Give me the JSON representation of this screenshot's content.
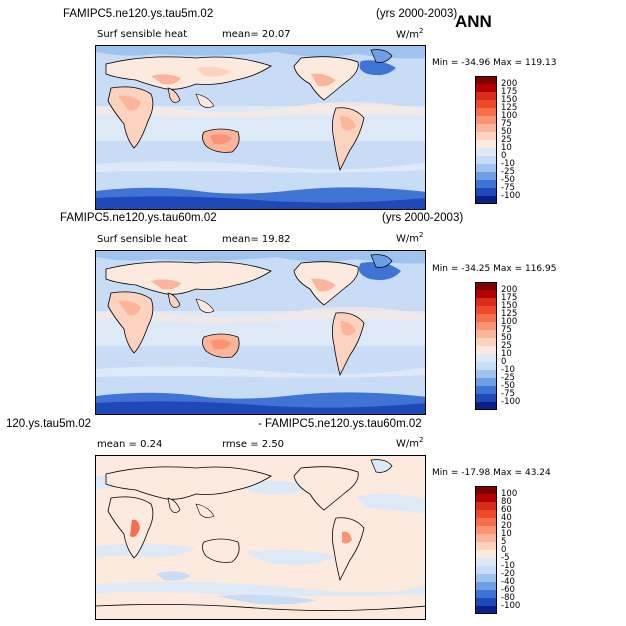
{
  "ann_label": "ANN",
  "panels": [
    {
      "case": "FAMIPC5.ne120.ys.tau5m.02",
      "years": "(yrs 2000-2003)",
      "variable": "Surf sensible heat",
      "stat": "mean=  20.07",
      "units": "W/m",
      "units_exp": "2",
      "minmax": "Min = -34.96  Max = 119.13",
      "levels": [
        "200",
        "175",
        "150",
        "125",
        "100",
        "75",
        "50",
        "25",
        "10",
        "0",
        "-10",
        "-25",
        "-50",
        "-75",
        "-100"
      ],
      "colors": [
        "#800000",
        "#b30000",
        "#d92b1a",
        "#ee4a2a",
        "#f76e4a",
        "#fa9474",
        "#fcb59a",
        "#fbd3bf",
        "#fdeadf",
        "#dde9f7",
        "#c8dcf5",
        "#9fc3ef",
        "#6e9ee3",
        "#3f73d4",
        "#1f49b8",
        "#0a1f8a"
      ]
    },
    {
      "case": "FAMIPC5.ne120.ys.tau60m.02",
      "years": "(yrs 2000-2003)",
      "variable": "Surf sensible heat",
      "stat": "mean=  19.82",
      "units": "W/m",
      "units_exp": "2",
      "minmax": "Min = -34.25  Max = 116.95",
      "levels": [
        "200",
        "175",
        "150",
        "125",
        "100",
        "75",
        "50",
        "25",
        "10",
        "0",
        "-10",
        "-25",
        "-50",
        "-75",
        "-100"
      ],
      "colors": [
        "#800000",
        "#b30000",
        "#d92b1a",
        "#ee4a2a",
        "#f76e4a",
        "#fa9474",
        "#fcb59a",
        "#fbd3bf",
        "#fdeadf",
        "#dde9f7",
        "#c8dcf5",
        "#9fc3ef",
        "#6e9ee3",
        "#3f73d4",
        "#1f49b8",
        "#0a1f8a"
      ]
    },
    {
      "case_left": "120.ys.tau5m.02",
      "case_right": "- FAMIPC5.ne120.ys.tau60m.02",
      "stat": "mean =   0.24",
      "stat2": "rmse =   2.50",
      "units": "W/m",
      "units_exp": "2",
      "minmax": "Min = -17.98  Max =  43.24",
      "levels": [
        "100",
        "80",
        "60",
        "40",
        "20",
        "10",
        "5",
        "0",
        "-5",
        "-10",
        "-20",
        "-40",
        "-60",
        "-80",
        "-100"
      ],
      "colors": [
        "#800000",
        "#b30000",
        "#d92b1a",
        "#ee4a2a",
        "#f76e4a",
        "#fa9474",
        "#fcb59a",
        "#fbd3bf",
        "#fdeadf",
        "#dde9f7",
        "#c8dcf5",
        "#9fc3ef",
        "#6e9ee3",
        "#3f73d4",
        "#1f49b8",
        "#0a1f8a"
      ]
    }
  ]
}
